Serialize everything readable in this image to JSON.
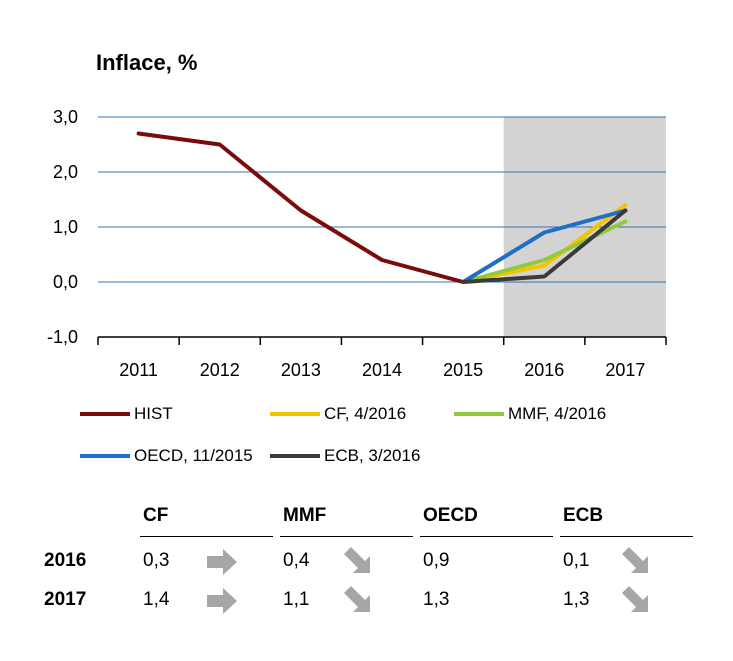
{
  "title": "Inflace, %",
  "chart_data": {
    "type": "line",
    "title": "Inflace, %",
    "categories": [
      "2011",
      "2012",
      "2013",
      "2014",
      "2015",
      "2016",
      "2017"
    ],
    "y_ticks": [
      "3,0",
      "2,0",
      "1,0",
      "0,0",
      "-1,0"
    ],
    "ylim": [
      -1.0,
      3.0
    ],
    "grid": true,
    "forecast_shaded_from": "2016",
    "series": [
      {
        "name": "HIST",
        "color": "#7b0b0b",
        "values": [
          2.7,
          2.5,
          1.3,
          0.4,
          0.0,
          null,
          null
        ]
      },
      {
        "name": "CF, 4/2016",
        "color": "#f5c400",
        "values": [
          null,
          null,
          null,
          null,
          0.0,
          0.3,
          1.4
        ]
      },
      {
        "name": "MMF, 4/2016",
        "color": "#92c83e",
        "values": [
          null,
          null,
          null,
          null,
          0.0,
          0.4,
          1.1
        ]
      },
      {
        "name": "OECD, 11/2015",
        "color": "#1f6fc5",
        "values": [
          null,
          null,
          null,
          null,
          0.0,
          0.9,
          1.3
        ]
      },
      {
        "name": "ECB, 3/2016",
        "color": "#3a3a3a",
        "values": [
          null,
          null,
          null,
          null,
          0.0,
          0.1,
          1.3
        ]
      }
    ]
  },
  "forecast_table": {
    "headers": [
      "CF",
      "MMF",
      "OECD",
      "ECB"
    ],
    "rows": [
      {
        "year": "2016",
        "values": [
          "0,3",
          "0,4",
          "0,9",
          "0,1"
        ],
        "arrows": [
          "right",
          "down-right",
          "",
          "down-right"
        ]
      },
      {
        "year": "2017",
        "values": [
          "1,4",
          "1,1",
          "1,3",
          "1,3"
        ],
        "arrows": [
          "right",
          "down-right",
          "",
          "down-right"
        ]
      }
    ],
    "arrow_color": "#a6a6a6"
  }
}
